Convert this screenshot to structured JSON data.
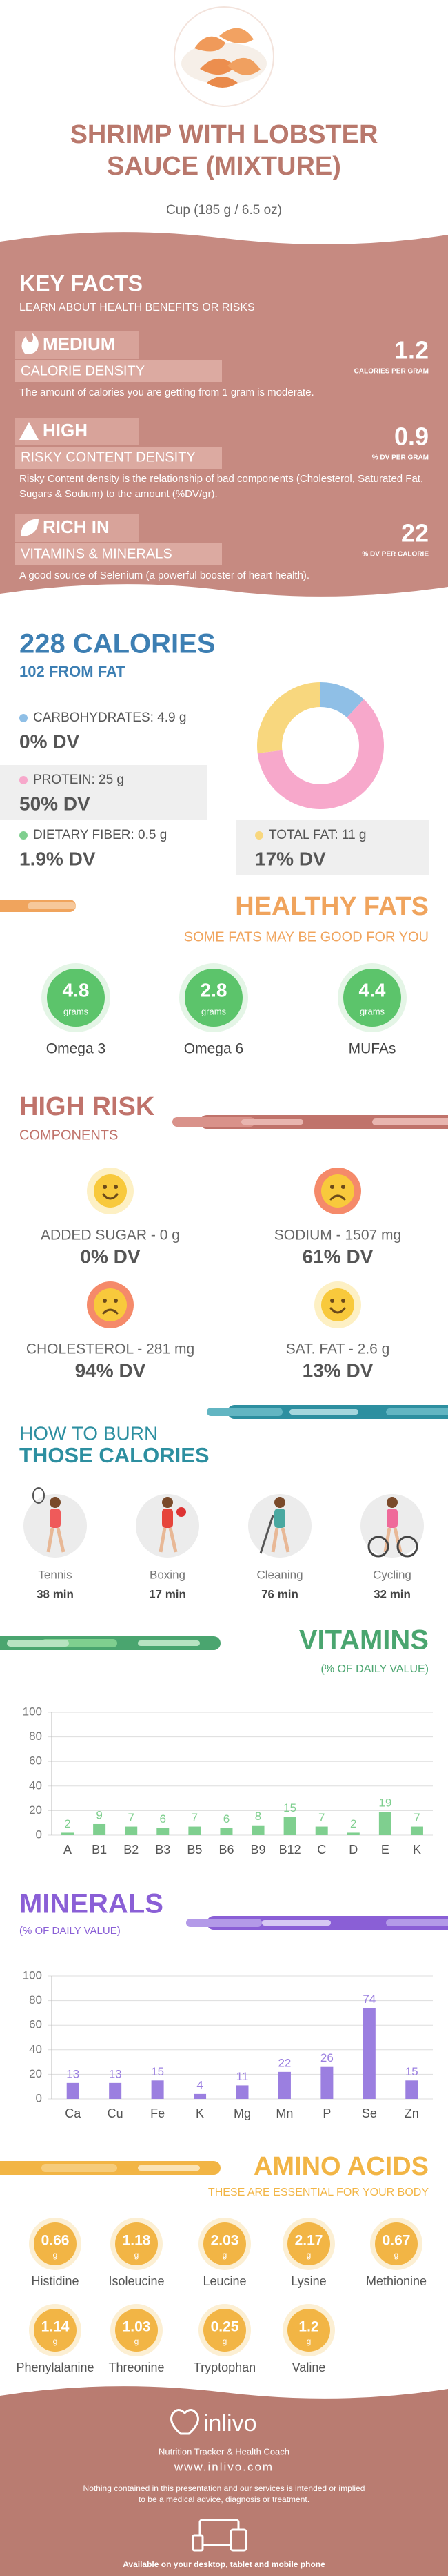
{
  "header": {
    "title": "SHRIMP WITH LOBSTER SAUCE (MIXTURE)",
    "serving": "Cup (185 g / 6.5 oz)"
  },
  "key_facts": {
    "title": "KEY FACTS",
    "subtitle": "LEARN ABOUT HEALTH BENEFITS OR RISKS",
    "items": [
      {
        "level": "MEDIUM",
        "name": "CALORIE DENSITY",
        "value": 1.2,
        "unit": "CALORIES PER GRAM",
        "description": "The amount of calories you are getting from 1 gram is moderate."
      },
      {
        "level": "HIGH",
        "name": "RISKY CONTENT DENSITY",
        "value": 0.9,
        "unit": "% DV PER GRAM",
        "description": "Risky Content density is the relationship of bad components (Cholesterol, Saturated Fat, Sugars & Sodium) to the amount (%DV/gr)."
      },
      {
        "level": "RICH  IN",
        "name": "VITAMINS & MINERALS",
        "value": 22,
        "unit": "% DV PER CALORIE",
        "description": "A good source of Selenium (a powerful booster of heart health)."
      }
    ]
  },
  "calories": {
    "title": "228 CALORIES",
    "subtitle": "102 FROM FAT",
    "macros": [
      {
        "label": "CARBOHYDRATES: 4.9 g",
        "dv": "0% DV"
      },
      {
        "label": "PROTEIN: 25 g",
        "dv": "50% DV"
      },
      {
        "label": "DIETARY FIBER: 0.5 g",
        "dv": "1.9% DV"
      },
      {
        "label": "TOTAL FAT: 11 g",
        "dv": "17% DV"
      }
    ]
  },
  "healthy_fats": {
    "title": "HEALTHY FATS",
    "subtitle": "SOME FATS MAY BE GOOD FOR YOU",
    "unit": "grams",
    "items": [
      {
        "value": 4.8,
        "name": "Omega 3"
      },
      {
        "value": 2.8,
        "name": "Omega 6"
      },
      {
        "value": 4.4,
        "name": "MUFAs"
      }
    ]
  },
  "high_risk": {
    "title": "HIGH RISK",
    "subtitle": "COMPONENTS",
    "items": [
      {
        "label": "ADDED SUGAR - 0 g",
        "dv": "0% DV"
      },
      {
        "label": "SODIUM - 1507 mg",
        "dv": "61% DV"
      },
      {
        "label": "CHOLESTEROL - 281 mg",
        "dv": "94% DV"
      },
      {
        "label": "SAT. FAT - 2.6 g",
        "dv": "13% DV"
      }
    ]
  },
  "burn": {
    "title": "HOW TO BURN",
    "subtitle": "THOSE CALORIES",
    "activities": [
      {
        "name": "Tennis",
        "time": "38 min"
      },
      {
        "name": "Boxing",
        "time": "17 min"
      },
      {
        "name": "Cleaning",
        "time": "76 min"
      },
      {
        "name": "Cycling",
        "time": "32 min"
      }
    ]
  },
  "vitamins": {
    "title": "VITAMINS",
    "subtitle": "(% OF DAILY VALUE)"
  },
  "minerals": {
    "title": "MINERALS",
    "subtitle": "(% OF DAILY VALUE)"
  },
  "chart_data": [
    {
      "type": "donut",
      "values": [
        4.9,
        25,
        11
      ],
      "colors": [
        "#8fbfe6",
        "#f7a8cb",
        "#f8d77e"
      ]
    },
    {
      "type": "bar",
      "categories": [
        "A",
        "B1",
        "B2",
        "B3",
        "B5",
        "B6",
        "B9",
        "B12",
        "C",
        "D",
        "E",
        "K"
      ],
      "values": [
        2,
        9,
        7,
        6,
        7,
        6,
        8,
        15,
        7,
        2,
        19,
        7
      ],
      "color": "#7fcf8f",
      "ylim": [
        0,
        100
      ],
      "yticks": [
        0,
        20,
        40,
        60,
        80,
        100
      ],
      "grid": true
    },
    {
      "type": "bar",
      "categories": [
        "Ca",
        "Cu",
        "Fe",
        "K",
        "Mg",
        "Mn",
        "P",
        "Se",
        "Zn"
      ],
      "values": [
        13,
        13,
        15,
        4,
        11,
        22,
        26,
        74,
        15
      ],
      "color": "#9b7fe0",
      "ylim": [
        0,
        100
      ],
      "yticks": [
        0,
        20,
        40,
        60,
        80,
        100
      ],
      "grid": true
    }
  ],
  "amino_acids": {
    "title": "AMINO ACIDS",
    "subtitle": "THESE ARE ESSENTIAL FOR YOUR BODY",
    "unit": "g",
    "items": [
      {
        "value": 0.66,
        "name": "Histidine"
      },
      {
        "value": 1.18,
        "name": "Isoleucine"
      },
      {
        "value": 2.03,
        "name": "Leucine"
      },
      {
        "value": 2.17,
        "name": "Lysine"
      },
      {
        "value": 0.67,
        "name": "Methionine"
      },
      {
        "value": 1.14,
        "name": "Phenylalanine"
      },
      {
        "value": 1.03,
        "name": "Threonine"
      },
      {
        "value": 0.25,
        "name": "Tryptophan"
      },
      {
        "value": 1.2,
        "name": "Valine"
      }
    ]
  },
  "footer": {
    "brand": "inlivo",
    "tagline": "Nutrition Tracker & Health Coach",
    "url": "www.inlivo.com",
    "disclaimer": "Nothing contained in this presentation and our services is intended or implied to be a medical advice, diagnosis or treatment.",
    "available": "Available on your desktop, tablet and mobile phone"
  }
}
